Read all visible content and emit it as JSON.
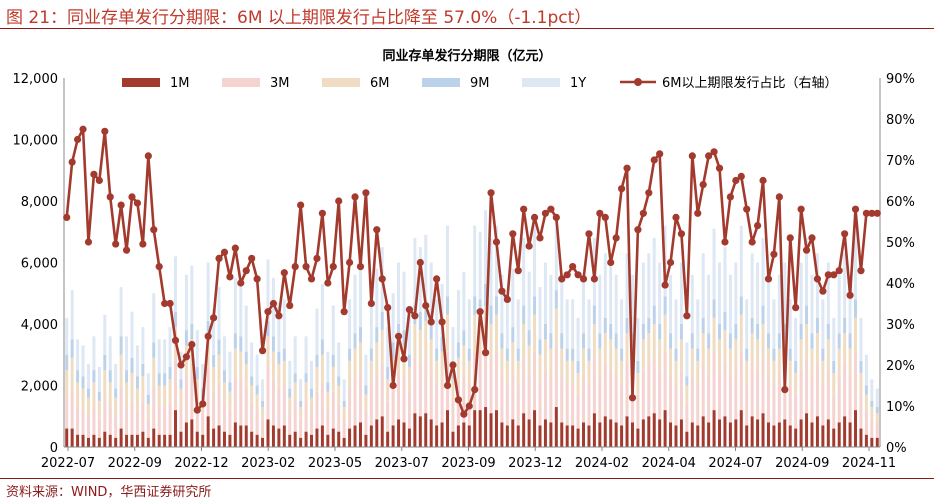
{
  "figure_title": "图 21：同业存单发行分期限：6M 以上期限发行占比降至 57.0%（-1.1pct）",
  "source": "资料来源：WIND，华西证券研究所",
  "colors": {
    "title": "#c0392b",
    "1M": "#a33a2e",
    "3M": "#f4d3d0",
    "6M": "#f0dcc2",
    "9M": "#bcd2ea",
    "1Y": "#dde8f4",
    "line": "#a33a2e"
  },
  "chart_data": {
    "type": "bar",
    "stacked": true,
    "title": "同业存单发行分期限（亿元）",
    "x_tick_labels": [
      "2022-07",
      "2022-09",
      "2022-12",
      "2023-02",
      "2023-05",
      "2023-07",
      "2023-09",
      "2023-12",
      "2024-02",
      "2024-04",
      "2024-07",
      "2024-09",
      "2024-11"
    ],
    "left_axis": {
      "min": 0,
      "max": 12000,
      "ticks": [
        "0",
        "2,000",
        "4,000",
        "6,000",
        "8,000",
        "10,000",
        "12,000"
      ]
    },
    "right_axis": {
      "min": 0,
      "max": 90,
      "unit": "%",
      "ticks": [
        "0%",
        "10%",
        "20%",
        "30%",
        "40%",
        "50%",
        "60%",
        "70%",
        "80%",
        "90%"
      ]
    },
    "legend": [
      "1M",
      "3M",
      "6M",
      "9M",
      "1Y",
      "6M以上期限发行占比（右轴）"
    ],
    "series_bars": [
      {
        "name": "1M",
        "values": [
          600,
          600,
          400,
          400,
          300,
          400,
          300,
          500,
          400,
          300,
          600,
          400,
          400,
          400,
          500,
          300,
          600,
          400,
          400,
          400,
          1200,
          500,
          800,
          900,
          500,
          400,
          1000,
          600,
          700,
          500,
          400,
          800,
          700,
          700,
          500,
          400,
          300,
          900,
          700,
          600,
          700,
          400,
          500,
          300,
          500,
          400,
          600,
          700,
          400,
          600,
          500,
          300,
          600,
          700,
          800,
          400,
          700,
          900,
          1000,
          500,
          700,
          900,
          800,
          600,
          1100,
          1000,
          1100,
          900,
          700,
          800,
          1200,
          500,
          700,
          800,
          700,
          1200,
          1200,
          1300,
          1100,
          1200,
          800,
          700,
          900,
          700,
          1100,
          900,
          1200,
          700,
          900,
          800,
          1300,
          800,
          700,
          700,
          600,
          800,
          700,
          1100,
          800,
          1000,
          900,
          800,
          700,
          1000,
          800,
          600,
          900,
          1000,
          1100,
          900,
          1200,
          800,
          700,
          900,
          500,
          800,
          700,
          1000,
          800,
          1200,
          900,
          1000,
          800,
          900,
          1200,
          700,
          1000,
          900,
          1100,
          800,
          700,
          800,
          900,
          700,
          600,
          900,
          1100,
          800,
          1000,
          700,
          900,
          600,
          800,
          1000,
          800,
          1200,
          600,
          400,
          300,
          300
        ]
      },
      {
        "name": "3M",
        "values": [
          1000,
          1300,
          900,
          800,
          700,
          900,
          600,
          1100,
          900,
          700,
          1300,
          900,
          1100,
          800,
          1000,
          600,
          1300,
          900,
          900,
          1000,
          1600,
          800,
          1500,
          1600,
          1000,
          700,
          1600,
          1200,
          1400,
          900,
          800,
          1500,
          1500,
          1200,
          900,
          800,
          600,
          1700,
          1500,
          1300,
          1300,
          700,
          1000,
          600,
          1000,
          700,
          1200,
          1400,
          800,
          1200,
          900,
          600,
          1300,
          1500,
          1600,
          800,
          1300,
          1500,
          1700,
          1000,
          1300,
          1600,
          1500,
          1200,
          1800,
          1700,
          1800,
          1600,
          1300,
          1400,
          1900,
          1000,
          1300,
          1500,
          1300,
          1900,
          1800,
          2000,
          1800,
          1900,
          1500,
          1300,
          1500,
          1300,
          1800,
          1500,
          1900,
          1400,
          1600,
          1500,
          2000,
          1500,
          1300,
          1300,
          1100,
          1500,
          1300,
          1800,
          1500,
          1700,
          1600,
          1500,
          1300,
          1700,
          1500,
          1100,
          1600,
          1700,
          1800,
          1600,
          1900,
          1500,
          1300,
          1600,
          900,
          1500,
          1300,
          1700,
          1500,
          1900,
          1600,
          1700,
          1500,
          1600,
          1900,
          1300,
          1700,
          1600,
          1800,
          1500,
          1300,
          1500,
          1600,
          1300,
          1100,
          1600,
          1800,
          1500,
          1700,
          1300,
          1600,
          1100,
          1500,
          1700,
          1500,
          1900,
          1100,
          800,
          600,
          500
        ]
      },
      {
        "name": "6M",
        "values": [
          900,
          1000,
          800,
          700,
          600,
          800,
          600,
          900,
          800,
          600,
          1100,
          800,
          900,
          700,
          800,
          500,
          1000,
          700,
          700,
          800,
          1100,
          600,
          1000,
          1000,
          700,
          500,
          1000,
          800,
          900,
          700,
          600,
          900,
          900,
          800,
          600,
          500,
          400,
          1000,
          900,
          800,
          800,
          500,
          600,
          400,
          600,
          500,
          800,
          900,
          600,
          800,
          600,
          400,
          900,
          1000,
          1000,
          500,
          800,
          1000,
          1100,
          700,
          900,
          1000,
          1000,
          800,
          1100,
          1100,
          1200,
          1000,
          800,
          900,
          1200,
          700,
          900,
          1000,
          800,
          1200,
          1200,
          1300,
          1100,
          1200,
          900,
          800,
          1000,
          800,
          1100,
          900,
          1200,
          900,
          1000,
          900,
          1200,
          900,
          800,
          800,
          700,
          900,
          800,
          1100,
          900,
          1000,
          1000,
          900,
          800,
          1000,
          900,
          700,
          1000,
          1000,
          1100,
          1000,
          1200,
          900,
          800,
          1000,
          600,
          900,
          800,
          1000,
          900,
          1100,
          1000,
          1100,
          900,
          1000,
          1200,
          800,
          1000,
          1000,
          1100,
          900,
          800,
          900,
          1000,
          800,
          700,
          1000,
          1100,
          900,
          1000,
          800,
          1000,
          700,
          900,
          1000,
          900,
          1100,
          700,
          500,
          400,
          300
        ]
      },
      {
        "name": "9M",
        "values": [
          500,
          600,
          400,
          400,
          300,
          400,
          300,
          500,
          400,
          300,
          600,
          400,
          500,
          400,
          400,
          300,
          500,
          400,
          400,
          400,
          500,
          300,
          500,
          500,
          400,
          300,
          500,
          400,
          500,
          400,
          300,
          500,
          500,
          400,
          300,
          300,
          200,
          500,
          500,
          400,
          400,
          300,
          300,
          200,
          300,
          300,
          400,
          500,
          300,
          400,
          300,
          200,
          400,
          500,
          500,
          300,
          400,
          500,
          600,
          400,
          500,
          500,
          500,
          400,
          600,
          600,
          600,
          500,
          400,
          500,
          600,
          400,
          500,
          500,
          400,
          600,
          600,
          700,
          600,
          600,
          500,
          400,
          500,
          400,
          600,
          500,
          600,
          500,
          500,
          500,
          600,
          500,
          400,
          400,
          400,
          500,
          400,
          600,
          500,
          500,
          500,
          500,
          400,
          500,
          500,
          400,
          500,
          500,
          600,
          500,
          600,
          500,
          400,
          500,
          300,
          500,
          400,
          500,
          500,
          600,
          500,
          600,
          500,
          500,
          600,
          400,
          500,
          500,
          600,
          500,
          400,
          500,
          500,
          400,
          400,
          500,
          600,
          500,
          500,
          400,
          500,
          400,
          500,
          500,
          500,
          600,
          400,
          300,
          200,
          200
        ]
      },
      {
        "name": "1Y",
        "values": [
          1200,
          1600,
          1000,
          1000,
          800,
          1100,
          800,
          1300,
          1100,
          800,
          1600,
          1100,
          1500,
          1000,
          1200,
          700,
          1600,
          1100,
          1100,
          1300,
          1800,
          900,
          1800,
          1900,
          1200,
          800,
          1900,
          1500,
          1700,
          1100,
          1000,
          1800,
          1900,
          1500,
          1100,
          1000,
          700,
          2000,
          1900,
          1600,
          1600,
          900,
          1200,
          700,
          1200,
          900,
          1500,
          1800,
          1000,
          1600,
          1100,
          700,
          1600,
          1900,
          2000,
          1000,
          1600,
          1900,
          2100,
          1300,
          1600,
          2000,
          1900,
          1500,
          2200,
          2100,
          2200,
          2000,
          1600,
          1700,
          2300,
          1300,
          1700,
          1900,
          1600,
          2300,
          2200,
          2400,
          2200,
          2300,
          1900,
          1600,
          1900,
          1600,
          2200,
          1900,
          2300,
          1700,
          2000,
          1900,
          2400,
          1900,
          1600,
          1600,
          1400,
          1900,
          1600,
          2200,
          1900,
          2100,
          2000,
          1900,
          1600,
          2100,
          1900,
          1400,
          2000,
          2100,
          2200,
          2000,
          2300,
          1900,
          1600,
          2000,
          1100,
          1900,
          1600,
          2100,
          1900,
          2300,
          2000,
          2100,
          1900,
          2000,
          2300,
          1600,
          2100,
          2000,
          2200,
          1900,
          1600,
          1900,
          2000,
          1600,
          1400,
          2000,
          2200,
          1900,
          2100,
          1600,
          2000,
          1400,
          1900,
          2100,
          1900,
          2300,
          1400,
          1000,
          700,
          600
        ]
      }
    ],
    "series_line": {
      "name": "6M以上期限发行占比（右轴）",
      "values": [
        56,
        69.5,
        75,
        77.5,
        50,
        66.5,
        65,
        77,
        61,
        49.5,
        59,
        48,
        61,
        59.5,
        49.5,
        71,
        53,
        44,
        35,
        35,
        26,
        20,
        22,
        25,
        9,
        10.5,
        27,
        31.5,
        46,
        47.5,
        41.5,
        48.5,
        40,
        43,
        46,
        41,
        23.5,
        33,
        35,
        32,
        42.5,
        34.5,
        44,
        59,
        44,
        41,
        46,
        57,
        40,
        44,
        60,
        33,
        45,
        61,
        44,
        62,
        35,
        53,
        41,
        34,
        15,
        27,
        21.5,
        33.5,
        32,
        45,
        34.5,
        30.5,
        41,
        30.5,
        15,
        20,
        11.5,
        8,
        10,
        14,
        33,
        23,
        62,
        50,
        38,
        36,
        52,
        43,
        58,
        49,
        56,
        51,
        57,
        58,
        56,
        41,
        42,
        44,
        42,
        41,
        52,
        41,
        57,
        56,
        45,
        51,
        63,
        68,
        12,
        53,
        57,
        62,
        70,
        71.5,
        39.5,
        45,
        56,
        52,
        32,
        71,
        57,
        64,
        71,
        72,
        68,
        50,
        61,
        65,
        66,
        58,
        50,
        54,
        65,
        41,
        47,
        61,
        14,
        51,
        34,
        58,
        48,
        51,
        41,
        38,
        42,
        42,
        43,
        52,
        37,
        58,
        43,
        57,
        57,
        57
      ]
    }
  }
}
